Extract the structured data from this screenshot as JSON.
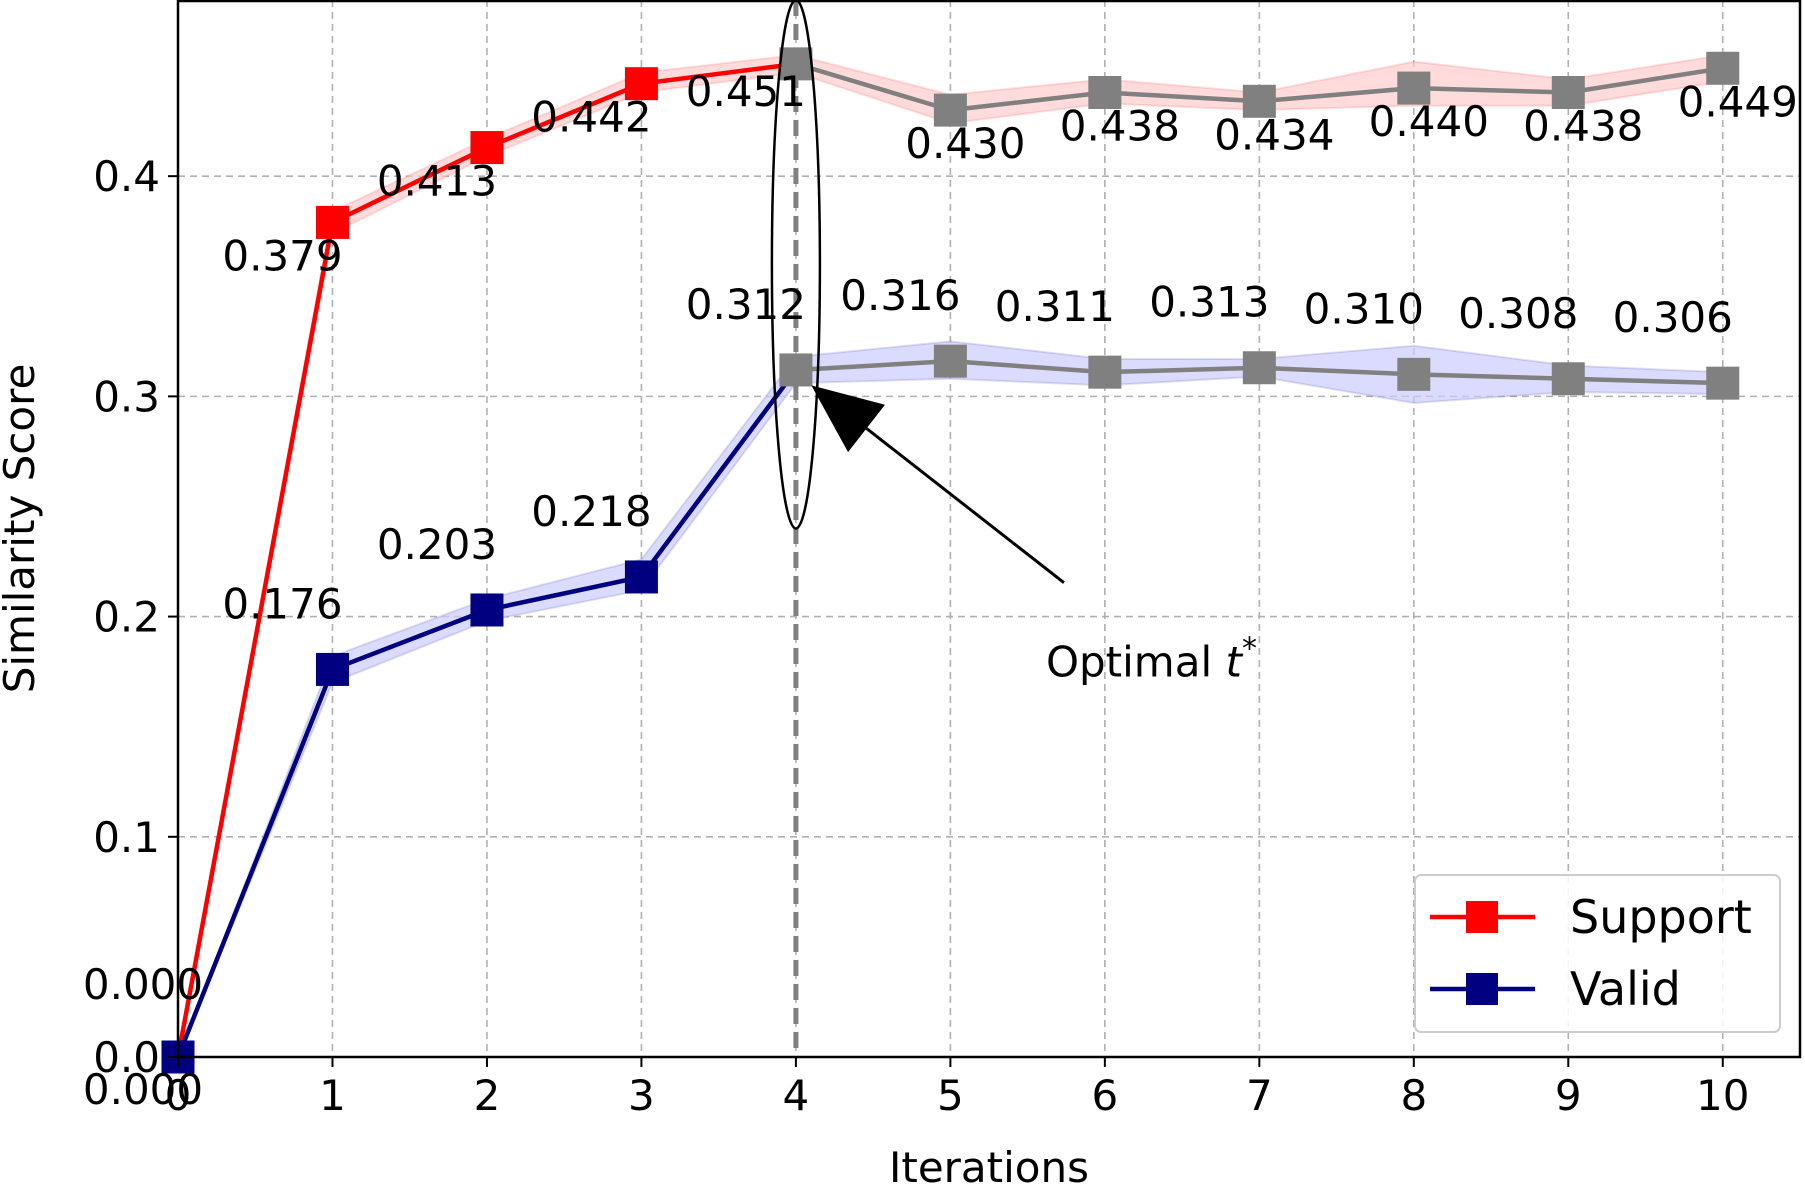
{
  "chart_data": {
    "type": "line",
    "xlabel": "Iterations",
    "ylabel": "Similarity Score",
    "xlim": [
      0,
      10.5
    ],
    "ylim": [
      0,
      0.48
    ],
    "x_ticks": [
      0,
      1,
      2,
      3,
      4,
      5,
      6,
      7,
      8,
      9,
      10
    ],
    "y_ticks": [
      {
        "value": 0.0,
        "label": "0.0"
      },
      {
        "value": 0.1,
        "label": "0.1"
      },
      {
        "value": 0.2,
        "label": "0.2"
      },
      {
        "value": 0.3,
        "label": "0.3"
      },
      {
        "value": 0.4,
        "label": "0.4"
      }
    ],
    "grid": true,
    "legend_position": "bottom-right",
    "x": [
      0,
      1,
      2,
      3,
      4,
      5,
      6,
      7,
      8,
      9,
      10
    ],
    "series": [
      {
        "name": "Support",
        "color": "#ff0000",
        "band_color": "#ffcccc",
        "values": [
          0.0,
          0.379,
          0.413,
          0.442,
          0.451,
          0.43,
          0.438,
          0.434,
          0.44,
          0.438,
          0.449
        ],
        "labels": [
          "0.000",
          "0.379",
          "0.413",
          "0.442",
          "0.451",
          "0.430",
          "0.438",
          "0.434",
          "0.440",
          "0.438",
          "0.449"
        ],
        "band_lower": [
          0.0,
          0.374,
          0.409,
          0.438,
          0.447,
          0.424,
          0.433,
          0.43,
          0.432,
          0.432,
          0.443
        ],
        "band_upper": [
          0.0,
          0.384,
          0.417,
          0.447,
          0.455,
          0.437,
          0.444,
          0.438,
          0.452,
          0.444,
          0.455
        ]
      },
      {
        "name": "Valid",
        "color": "#000080",
        "band_color": "#ccccff",
        "values": [
          0.0,
          0.176,
          0.203,
          0.218,
          0.312,
          0.316,
          0.311,
          0.313,
          0.31,
          0.308,
          0.306
        ],
        "labels": [
          "0.000",
          "0.176",
          "0.203",
          "0.218",
          "0.312",
          "0.316",
          "0.311",
          "0.313",
          "0.310",
          "0.308",
          "0.306"
        ],
        "band_lower": [
          0.0,
          0.17,
          0.198,
          0.212,
          0.306,
          0.308,
          0.305,
          0.309,
          0.297,
          0.302,
          0.301
        ],
        "band_upper": [
          0.0,
          0.182,
          0.208,
          0.226,
          0.318,
          0.325,
          0.317,
          0.317,
          0.323,
          0.314,
          0.311
        ]
      }
    ],
    "after_optimal_color": "#808080",
    "optimal": {
      "x": 4,
      "label_prefix": "Optimal ",
      "label_var": "t",
      "label_sup": "*",
      "ellipse_y_range": [
        0.24,
        0.48
      ],
      "arrow_tip": [
        4.1,
        0.305
      ],
      "text_at": [
        5.8,
        0.17
      ]
    }
  }
}
